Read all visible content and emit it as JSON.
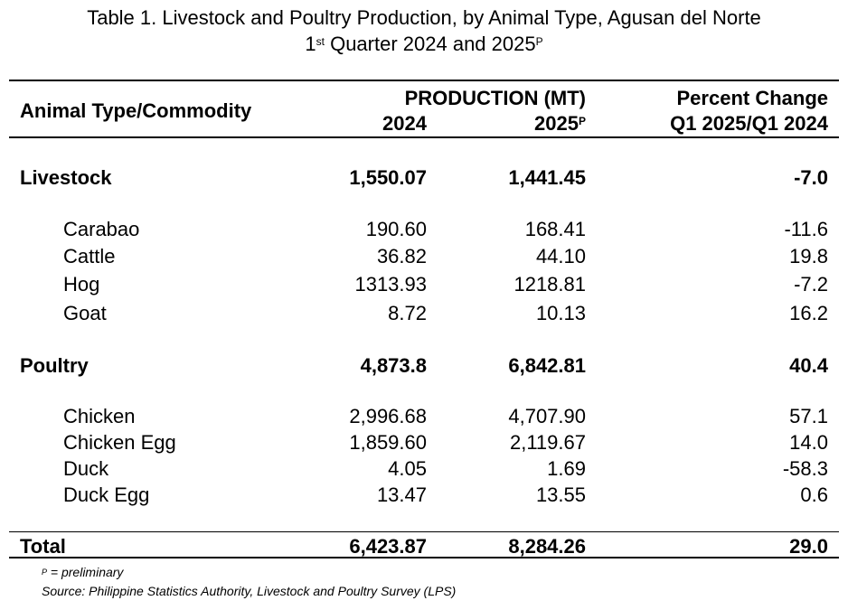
{
  "title": {
    "line1": "Table 1. Livestock and Poultry Production, by Animal Type, Agusan del Norte",
    "line2_prefix": "1",
    "line2_sup": "st",
    "line2_mid": " Quarter 2024 and 2025",
    "line2_sup2": "P"
  },
  "header": {
    "col1": "Animal Type/Commodity",
    "production": "PRODUCTION (MT)",
    "year1": "2024",
    "year2": "2025",
    "year2_sup": "P",
    "pct_line1": "Percent Change",
    "pct_line2": "Q1 2025/Q1 2024"
  },
  "rows": [
    {
      "label": "Livestock",
      "v2024": "1,550.07",
      "v2025": "1,441.45",
      "pct": "-7.0"
    },
    {
      "label": "Carabao",
      "v2024": "190.60",
      "v2025": "168.41",
      "pct": "-11.6"
    },
    {
      "label": "Cattle",
      "v2024": "36.82",
      "v2025": "44.10",
      "pct": "19.8"
    },
    {
      "label": "Hog",
      "v2024": "1313.93",
      "v2025": "1218.81",
      "pct": "-7.2"
    },
    {
      "label": "Goat",
      "v2024": "8.72",
      "v2025": "10.13",
      "pct": "16.2"
    },
    {
      "label": "Poultry",
      "v2024": "4,873.8",
      "v2025": "6,842.81",
      "pct": "40.4"
    },
    {
      "label": "Chicken",
      "v2024": "2,996.68",
      "v2025": "4,707.90",
      "pct": "57.1"
    },
    {
      "label": "Chicken Egg",
      "v2024": "1,859.60",
      "v2025": "2,119.67",
      "pct": "14.0"
    },
    {
      "label": "Duck",
      "v2024": "4.05",
      "v2025": "1.69",
      "pct": "-58.3"
    },
    {
      "label": "Duck Egg",
      "v2024": "13.47",
      "v2025": "13.55",
      "pct": "0.6"
    },
    {
      "label": "Total",
      "v2024": "6,423.87",
      "v2025": "8,284.26",
      "pct": "29.0"
    }
  ],
  "footnote": {
    "sup": "P",
    "text": " = preliminary",
    "source": "Source: Philippine Statistics Authority, Livestock and Poultry Survey (LPS)"
  }
}
